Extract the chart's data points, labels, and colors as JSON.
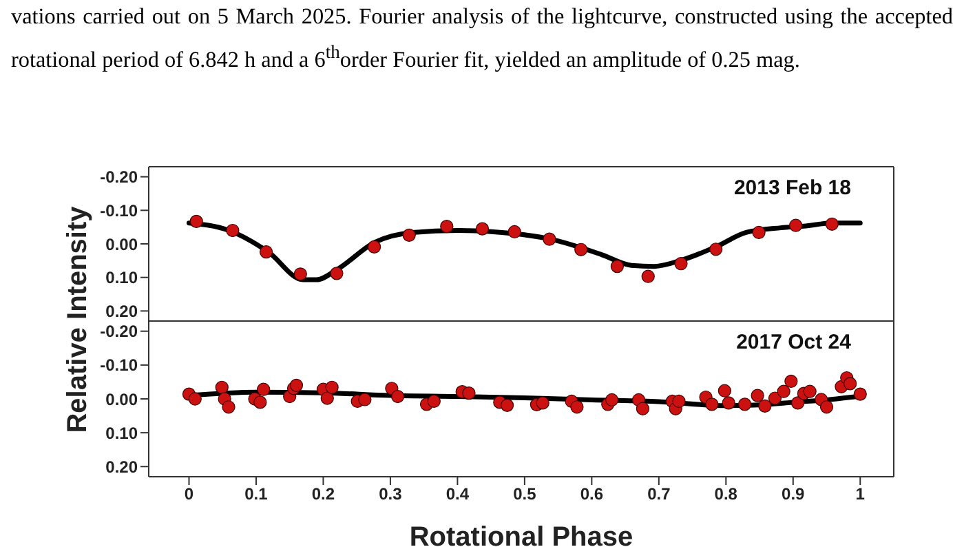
{
  "chart_data": [
    {
      "type": "scatter",
      "title": "2013 Feb 18",
      "ylabel": "Relative Intensity",
      "annotations": [
        "vations carried out on 5 March 2025. Fourier analysis of the lightcurve, constructed using the accepted rotational period of 6.842 h and a 6$^{th}$order Fourier fit, yielded an amplitude of 0.25 mag."
      ],
      "xlim": [
        -0.06,
        1.05
      ],
      "ylim": [
        0.23,
        -0.23
      ],
      "yticks": [
        {
          "value": -0.2,
          "label": "-0.20"
        },
        {
          "value": -0.1,
          "label": "-0.10"
        },
        {
          "value": 0,
          "label": "0.00"
        },
        {
          "value": 0.1,
          "label": "0.10"
        },
        {
          "value": 0.2,
          "label": "0.20"
        }
      ],
      "tick_labels": "y",
      "grid": false,
      "legend": false,
      "marker": "circle",
      "series": [
        {
          "type": "scatter",
          "color": "#cc1111",
          "x": [
            0.011,
            0.065,
            0.115,
            0.166,
            0.22,
            0.276,
            0.328,
            0.384,
            0.437,
            0.485,
            0.537,
            0.584,
            0.638,
            0.684,
            0.733,
            0.785,
            0.849,
            0.904,
            0.958
          ],
          "values": [
            -0.067,
            -0.04,
            0.024,
            0.09,
            0.088,
            0.009,
            -0.026,
            -0.052,
            -0.045,
            -0.036,
            -0.014,
            0.017,
            0.067,
            0.097,
            0.059,
            0.016,
            -0.034,
            -0.055,
            -0.059
          ]
        },
        {
          "type": "line",
          "color": "#000000",
          "marker": "none",
          "x": [
            0,
            0.058,
            0.118,
            0.17,
            0.19,
            0.221,
            0.277,
            0.333,
            0.401,
            0.453,
            0.539,
            0.616,
            0.659,
            0.693,
            0.736,
            0.787,
            0.83,
            0.882,
            0.916,
            0.959,
            1
          ],
          "values": [
            -0.062,
            -0.041,
            0.024,
            0.107,
            0.107,
            0.076,
            -0.005,
            -0.034,
            -0.04,
            -0.036,
            -0.014,
            0.033,
            0.064,
            0.067,
            0.047,
            0.007,
            -0.034,
            -0.048,
            -0.053,
            -0.062,
            -0.062
          ]
        }
      ]
    },
    {
      "type": "scatter",
      "title": "2017 Oct 24",
      "xlabel": "Rotational Phase",
      "xlim": [
        -0.06,
        1.05
      ],
      "ylim": [
        0.23,
        -0.23
      ],
      "xticks": [
        0,
        0.1,
        0.2,
        0.3,
        0.4,
        0.5,
        0.6,
        0.7,
        0.8,
        0.9,
        1
      ],
      "yticks": [
        {
          "value": -0.2,
          "label": "-0.20"
        },
        {
          "value": -0.1,
          "label": "-0.10"
        },
        {
          "value": 0,
          "label": "0.00"
        },
        {
          "value": 0.1,
          "label": "0.10"
        },
        {
          "value": 0.2,
          "label": "0.20"
        }
      ],
      "grid": false,
      "legend": false,
      "marker": "circle",
      "series": [
        {
          "type": "scatter",
          "color": "#cc1111",
          "x": [
            0,
            0.009,
            0.049,
            0.053,
            0.059,
            0.098,
            0.106,
            0.111,
            0.15,
            0.156,
            0.16,
            0.2,
            0.206,
            0.213,
            0.251,
            0.262,
            0.302,
            0.311,
            0.354,
            0.365,
            0.407,
            0.417,
            0.463,
            0.474,
            0.518,
            0.527,
            0.57,
            0.578,
            0.624,
            0.63,
            0.67,
            0.676,
            0.72,
            0.725,
            0.73,
            0.77,
            0.779,
            0.798,
            0.804,
            0.828,
            0.847,
            0.858,
            0.873,
            0.886,
            0.897,
            0.907,
            0.916,
            0.925,
            0.942,
            0.95,
            0.972,
            0.98,
            0.985,
            1
          ],
          "values": [
            -0.014,
            0,
            -0.034,
            0,
            0.024,
            0,
            0.01,
            -0.028,
            -0.007,
            -0.031,
            -0.04,
            -0.028,
            -0.002,
            -0.034,
            0.007,
            0.002,
            -0.031,
            -0.007,
            0.016,
            0.007,
            -0.021,
            -0.017,
            0.01,
            0.019,
            0.017,
            0.012,
            0.007,
            0.024,
            0.016,
            0.003,
            0.003,
            0.029,
            0.007,
            0.029,
            0.007,
            -0.005,
            0.016,
            -0.024,
            0.012,
            0.016,
            -0.01,
            0.021,
            -0.002,
            -0.022,
            -0.052,
            0.012,
            -0.016,
            -0.022,
            0.002,
            0.024,
            -0.036,
            -0.062,
            -0.045,
            -0.014
          ]
        },
        {
          "type": "line",
          "color": "#000000",
          "marker": "none",
          "x": [
            0,
            0.1,
            0.2,
            0.3,
            0.4,
            0.5,
            0.6,
            0.7,
            0.8,
            0.85,
            0.9,
            0.95,
            1
          ],
          "values": [
            -0.01,
            -0.02,
            -0.018,
            -0.01,
            -0.007,
            -0.003,
            0.003,
            0.008,
            0.02,
            0.018,
            0.01,
            0.003,
            -0.008
          ]
        }
      ]
    }
  ]
}
